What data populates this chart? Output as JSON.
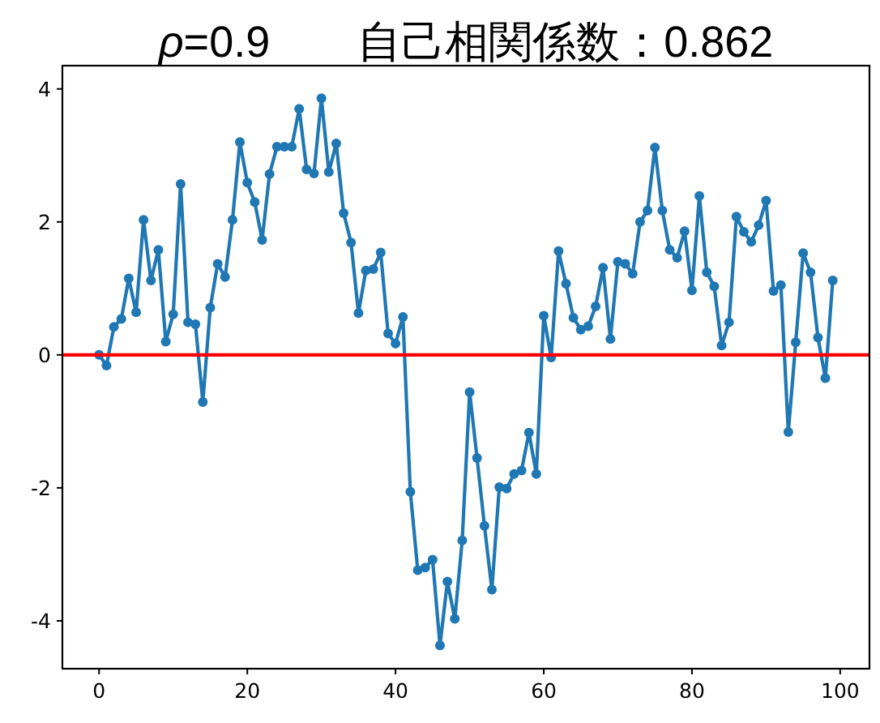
{
  "chart_data": {
    "type": "line",
    "title": "*ρ*=0.9　　自己相関係数：0.862",
    "x": [
      0,
      1,
      2,
      3,
      4,
      5,
      6,
      7,
      8,
      9,
      10,
      11,
      12,
      13,
      14,
      15,
      16,
      17,
      18,
      19,
      20,
      21,
      22,
      23,
      24,
      25,
      26,
      27,
      28,
      29,
      30,
      31,
      32,
      33,
      34,
      35,
      36,
      37,
      38,
      39,
      40,
      41,
      42,
      43,
      44,
      45,
      46,
      47,
      48,
      49,
      50,
      51,
      52,
      53,
      54,
      55,
      56,
      57,
      58,
      59,
      60,
      61,
      62,
      63,
      64,
      65,
      66,
      67,
      68,
      69,
      70,
      71,
      72,
      73,
      74,
      75,
      76,
      77,
      78,
      79,
      80,
      81,
      82,
      83,
      84,
      85,
      86,
      87,
      88,
      89,
      90,
      91,
      92,
      93,
      94,
      95,
      96,
      97,
      98,
      99
    ],
    "series": [
      {
        "color": "#1f77b4",
        "values": [
          0.0,
          -0.16,
          0.42,
          0.54,
          1.15,
          0.64,
          2.03,
          1.12,
          1.58,
          0.2,
          0.61,
          2.57,
          0.49,
          0.46,
          -0.71,
          0.71,
          1.37,
          1.17,
          2.03,
          3.2,
          2.59,
          2.3,
          1.73,
          2.72,
          3.13,
          3.13,
          3.13,
          3.7,
          2.79,
          2.73,
          3.86,
          2.75,
          3.18,
          2.13,
          1.69,
          0.63,
          1.27,
          1.29,
          1.54,
          0.32,
          0.17,
          0.57,
          -2.06,
          -3.24,
          -3.2,
          -3.08,
          -4.37,
          -3.41,
          -3.97,
          -2.79,
          -0.56,
          -1.55,
          -2.57,
          -3.53,
          -1.99,
          -2.01,
          -1.79,
          -1.74,
          -1.17,
          -1.79,
          0.59,
          -0.04,
          1.56,
          1.07,
          0.56,
          0.38,
          0.43,
          0.73,
          1.31,
          0.24,
          1.4,
          1.37,
          1.22,
          2.0,
          2.17,
          3.12,
          2.17,
          1.58,
          1.46,
          1.86,
          0.97,
          2.39,
          1.24,
          1.03,
          0.14,
          0.49,
          2.08,
          1.85,
          1.7,
          1.95,
          2.32,
          0.96,
          1.05,
          -1.16,
          0.19,
          1.53,
          1.24,
          0.26,
          -0.35,
          1.12
        ]
      }
    ],
    "xlim": [
      -4.95,
      103.95
    ],
    "ylim": [
      -4.72,
      4.35
    ],
    "xticks": [
      0,
      20,
      40,
      60,
      80,
      100
    ],
    "yticks": [
      -4,
      -2,
      0,
      2,
      4
    ],
    "ref_lines": [
      {
        "axis": "y",
        "value": 0,
        "color": "#ff0000",
        "line_style": "solid"
      }
    ],
    "marker": "circle",
    "line_style": "solid"
  }
}
